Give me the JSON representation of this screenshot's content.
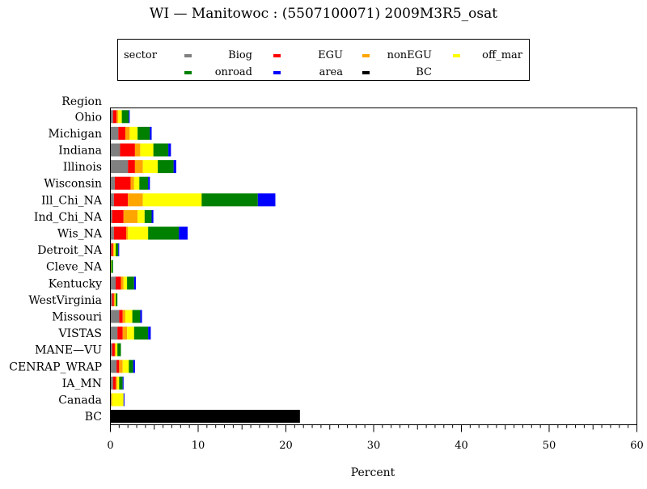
{
  "chart_data": {
    "type": "bar",
    "orientation": "horizontal",
    "stacked": true,
    "title": "WI  —  Manitowoc  :  (5507100071)  2009M3R5_osat",
    "xlabel": "Percent",
    "ylabel": "Region",
    "xlim": [
      0,
      60
    ],
    "xticks": [
      0,
      10,
      20,
      30,
      40,
      50,
      60
    ],
    "grid": false,
    "legend_title": "sector",
    "legend_placement": "top-center",
    "categories": [
      "Ohio",
      "Michigan",
      "Indiana",
      "Illinois",
      "Wisconsin",
      "Ill_Chi_NA",
      "Ind_Chi_NA",
      "Wis_NA",
      "Detroit_NA",
      "Cleve_NA",
      "Kentucky",
      "WestVirginia",
      "Missouri",
      "VISTAS",
      "MANE—VU",
      "CENRAP_WRAP",
      "IA_MN",
      "Canada",
      "BC"
    ],
    "series": [
      {
        "name": "Biog",
        "color": "#808080",
        "values": [
          0.3,
          0.9,
          1.1,
          2.0,
          0.5,
          0.4,
          0.2,
          0.4,
          0.1,
          0.0,
          0.6,
          0.2,
          1.0,
          0.8,
          0.2,
          0.7,
          0.3,
          0.1,
          0
        ]
      },
      {
        "name": "EGU",
        "color": "#ff0000",
        "values": [
          0.4,
          0.8,
          1.7,
          0.8,
          1.8,
          1.6,
          1.3,
          1.4,
          0.2,
          0.0,
          0.6,
          0.2,
          0.4,
          0.6,
          0.3,
          0.3,
          0.3,
          0.0,
          0
        ]
      },
      {
        "name": "nonEGU",
        "color": "#ffa500",
        "values": [
          0.2,
          0.5,
          0.6,
          0.9,
          0.4,
          1.7,
          1.6,
          0.2,
          0.1,
          0.0,
          0.3,
          0.1,
          0.3,
          0.5,
          0.1,
          0.4,
          0.2,
          0.1,
          0
        ]
      },
      {
        "name": "off_mar",
        "color": "#ffff00",
        "values": [
          0.4,
          0.9,
          1.5,
          1.7,
          0.6,
          6.7,
          0.8,
          2.3,
          0.2,
          0.1,
          0.4,
          0.1,
          0.8,
          0.8,
          0.2,
          0.7,
          0.2,
          1.3,
          0
        ]
      },
      {
        "name": "onroad",
        "color": "#008000",
        "values": [
          0.8,
          1.4,
          1.7,
          1.8,
          1.0,
          6.4,
          0.8,
          3.5,
          0.3,
          0.2,
          0.8,
          0.2,
          0.9,
          1.6,
          0.4,
          0.5,
          0.4,
          0.0,
          0
        ]
      },
      {
        "name": "area",
        "color": "#0000ff",
        "values": [
          0.1,
          0.2,
          0.3,
          0.3,
          0.2,
          2.0,
          0.2,
          1.0,
          0.1,
          0.0,
          0.2,
          0.0,
          0.2,
          0.3,
          0.0,
          0.2,
          0.1,
          0.1,
          0
        ]
      },
      {
        "name": "BC",
        "color": "#000000",
        "values": [
          0,
          0,
          0,
          0,
          0,
          0,
          0,
          0,
          0,
          0,
          0,
          0,
          0,
          0,
          0,
          0,
          0,
          0,
          21.6
        ]
      }
    ]
  }
}
